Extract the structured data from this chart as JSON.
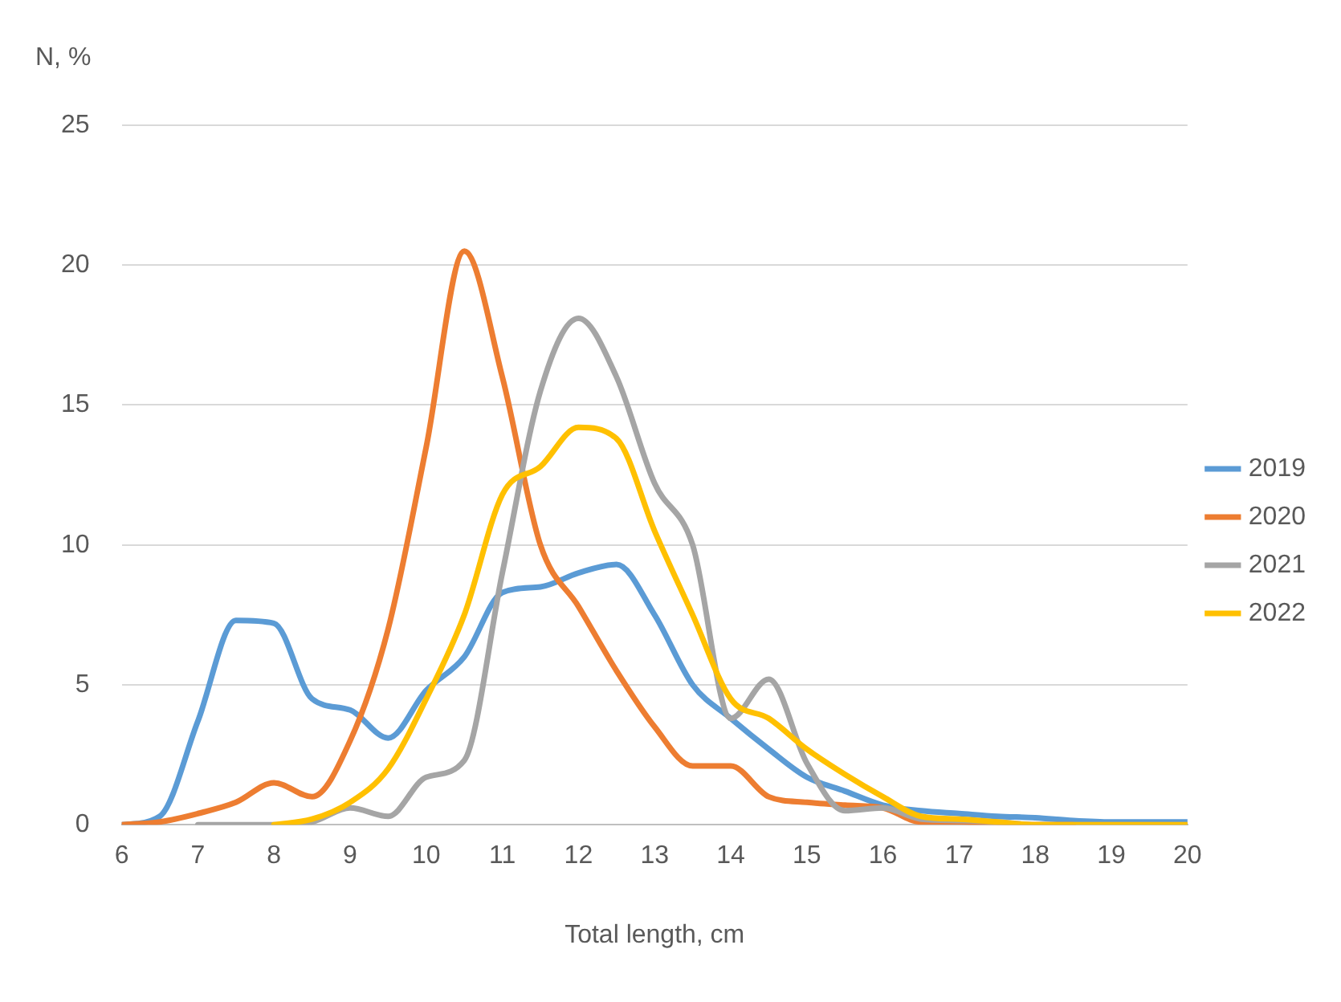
{
  "chart_data": {
    "type": "line",
    "xlabel": "Total length, cm",
    "ylabel": "N, %",
    "xlim": [
      6,
      20
    ],
    "xticks": [
      6,
      7,
      8,
      9,
      10,
      11,
      12,
      13,
      14,
      15,
      16,
      17,
      18,
      19,
      20
    ],
    "ylim": [
      0,
      25
    ],
    "yticks": [
      0,
      5,
      10,
      15,
      20,
      25
    ],
    "grid": "y",
    "legend": "right",
    "marker": "none",
    "line_style": "solid",
    "series": [
      {
        "name": "2019",
        "color": "#5b9bd5",
        "x": [
          6,
          6.5,
          7,
          7.5,
          8,
          8.5,
          9,
          9.5,
          10,
          10.5,
          11,
          11.5,
          12,
          12.5,
          13,
          13.5,
          14,
          14.5,
          15,
          15.5,
          16,
          16.5,
          17,
          17.5,
          18,
          18.5,
          19,
          19.5,
          20
        ],
        "values": [
          0,
          0.3,
          3.7,
          7.3,
          7.2,
          4.5,
          4.1,
          3.1,
          4.8,
          6,
          8.3,
          8.5,
          9,
          9.3,
          7.5,
          5,
          3.8,
          2.7,
          1.7,
          1.2,
          0.7,
          0.5,
          0.4,
          0.3,
          0.25,
          0.15,
          0.1,
          0.1,
          0.1
        ]
      },
      {
        "name": "2020",
        "color": "#ed7d31",
        "x": [
          6,
          6.5,
          7,
          7.5,
          8,
          8.5,
          9,
          9.5,
          10,
          10.5,
          11,
          11.5,
          12,
          12.5,
          13,
          13.5,
          14,
          14.5,
          15,
          15.5,
          16,
          16.5,
          17,
          17.5,
          18,
          18.5
        ],
        "values": [
          0,
          0.1,
          0.4,
          0.8,
          1.5,
          1,
          3,
          7,
          13.5,
          20.5,
          16,
          10,
          7.8,
          5.5,
          3.5,
          2.1,
          2.1,
          1,
          0.8,
          0.7,
          0.6,
          0.1,
          0.1,
          0,
          0,
          0
        ]
      },
      {
        "name": "2021",
        "color": "#a5a5a5",
        "x": [
          7,
          7.5,
          8,
          8.5,
          9,
          9.5,
          10,
          10.5,
          11,
          11.5,
          12,
          12.5,
          13,
          13.5,
          14,
          14.5,
          15,
          15.5,
          16,
          16.5,
          17,
          17.5,
          18,
          18.5,
          19,
          19.5,
          20
        ],
        "values": [
          0,
          0,
          0,
          0.1,
          0.6,
          0.3,
          1.7,
          2.3,
          9,
          15.5,
          18.1,
          16,
          12.2,
          10,
          3.8,
          5.2,
          2.2,
          0.5,
          0.6,
          0.2,
          0.15,
          0.1,
          0,
          0,
          0,
          0,
          0
        ]
      },
      {
        "name": "2022",
        "color": "#ffc000",
        "x": [
          8,
          8.5,
          9,
          9.5,
          10,
          10.5,
          11,
          11.5,
          12,
          12.5,
          13,
          13.5,
          14,
          14.5,
          15,
          15.5,
          16,
          16.5,
          17,
          17.5,
          18,
          18.5,
          19,
          19.5,
          20
        ],
        "values": [
          0,
          0.2,
          0.8,
          2,
          4.5,
          7.5,
          11.8,
          12.8,
          14.2,
          13.8,
          10.5,
          7.5,
          4.5,
          3.8,
          2.7,
          1.8,
          1,
          0.3,
          0.2,
          0.1,
          0,
          0,
          0,
          0,
          0
        ]
      }
    ]
  }
}
